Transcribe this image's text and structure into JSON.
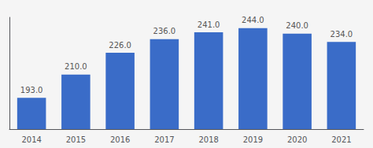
{
  "chart_data": {
    "type": "bar",
    "categories": [
      "2014",
      "2015",
      "2016",
      "2017",
      "2018",
      "2019",
      "2020",
      "2021"
    ],
    "values": [
      193.0,
      210.0,
      226.0,
      236.0,
      241.0,
      244.0,
      240.0,
      234.0
    ],
    "value_labels": [
      "193.0",
      "210.0",
      "226.0",
      "236.0",
      "241.0",
      "244.0",
      "240.0",
      "234.0"
    ],
    "color": "#3A6CC8",
    "ylim": [
      170,
      252
    ],
    "data_labels": true,
    "tick_labels": "x",
    "grid": false
  }
}
